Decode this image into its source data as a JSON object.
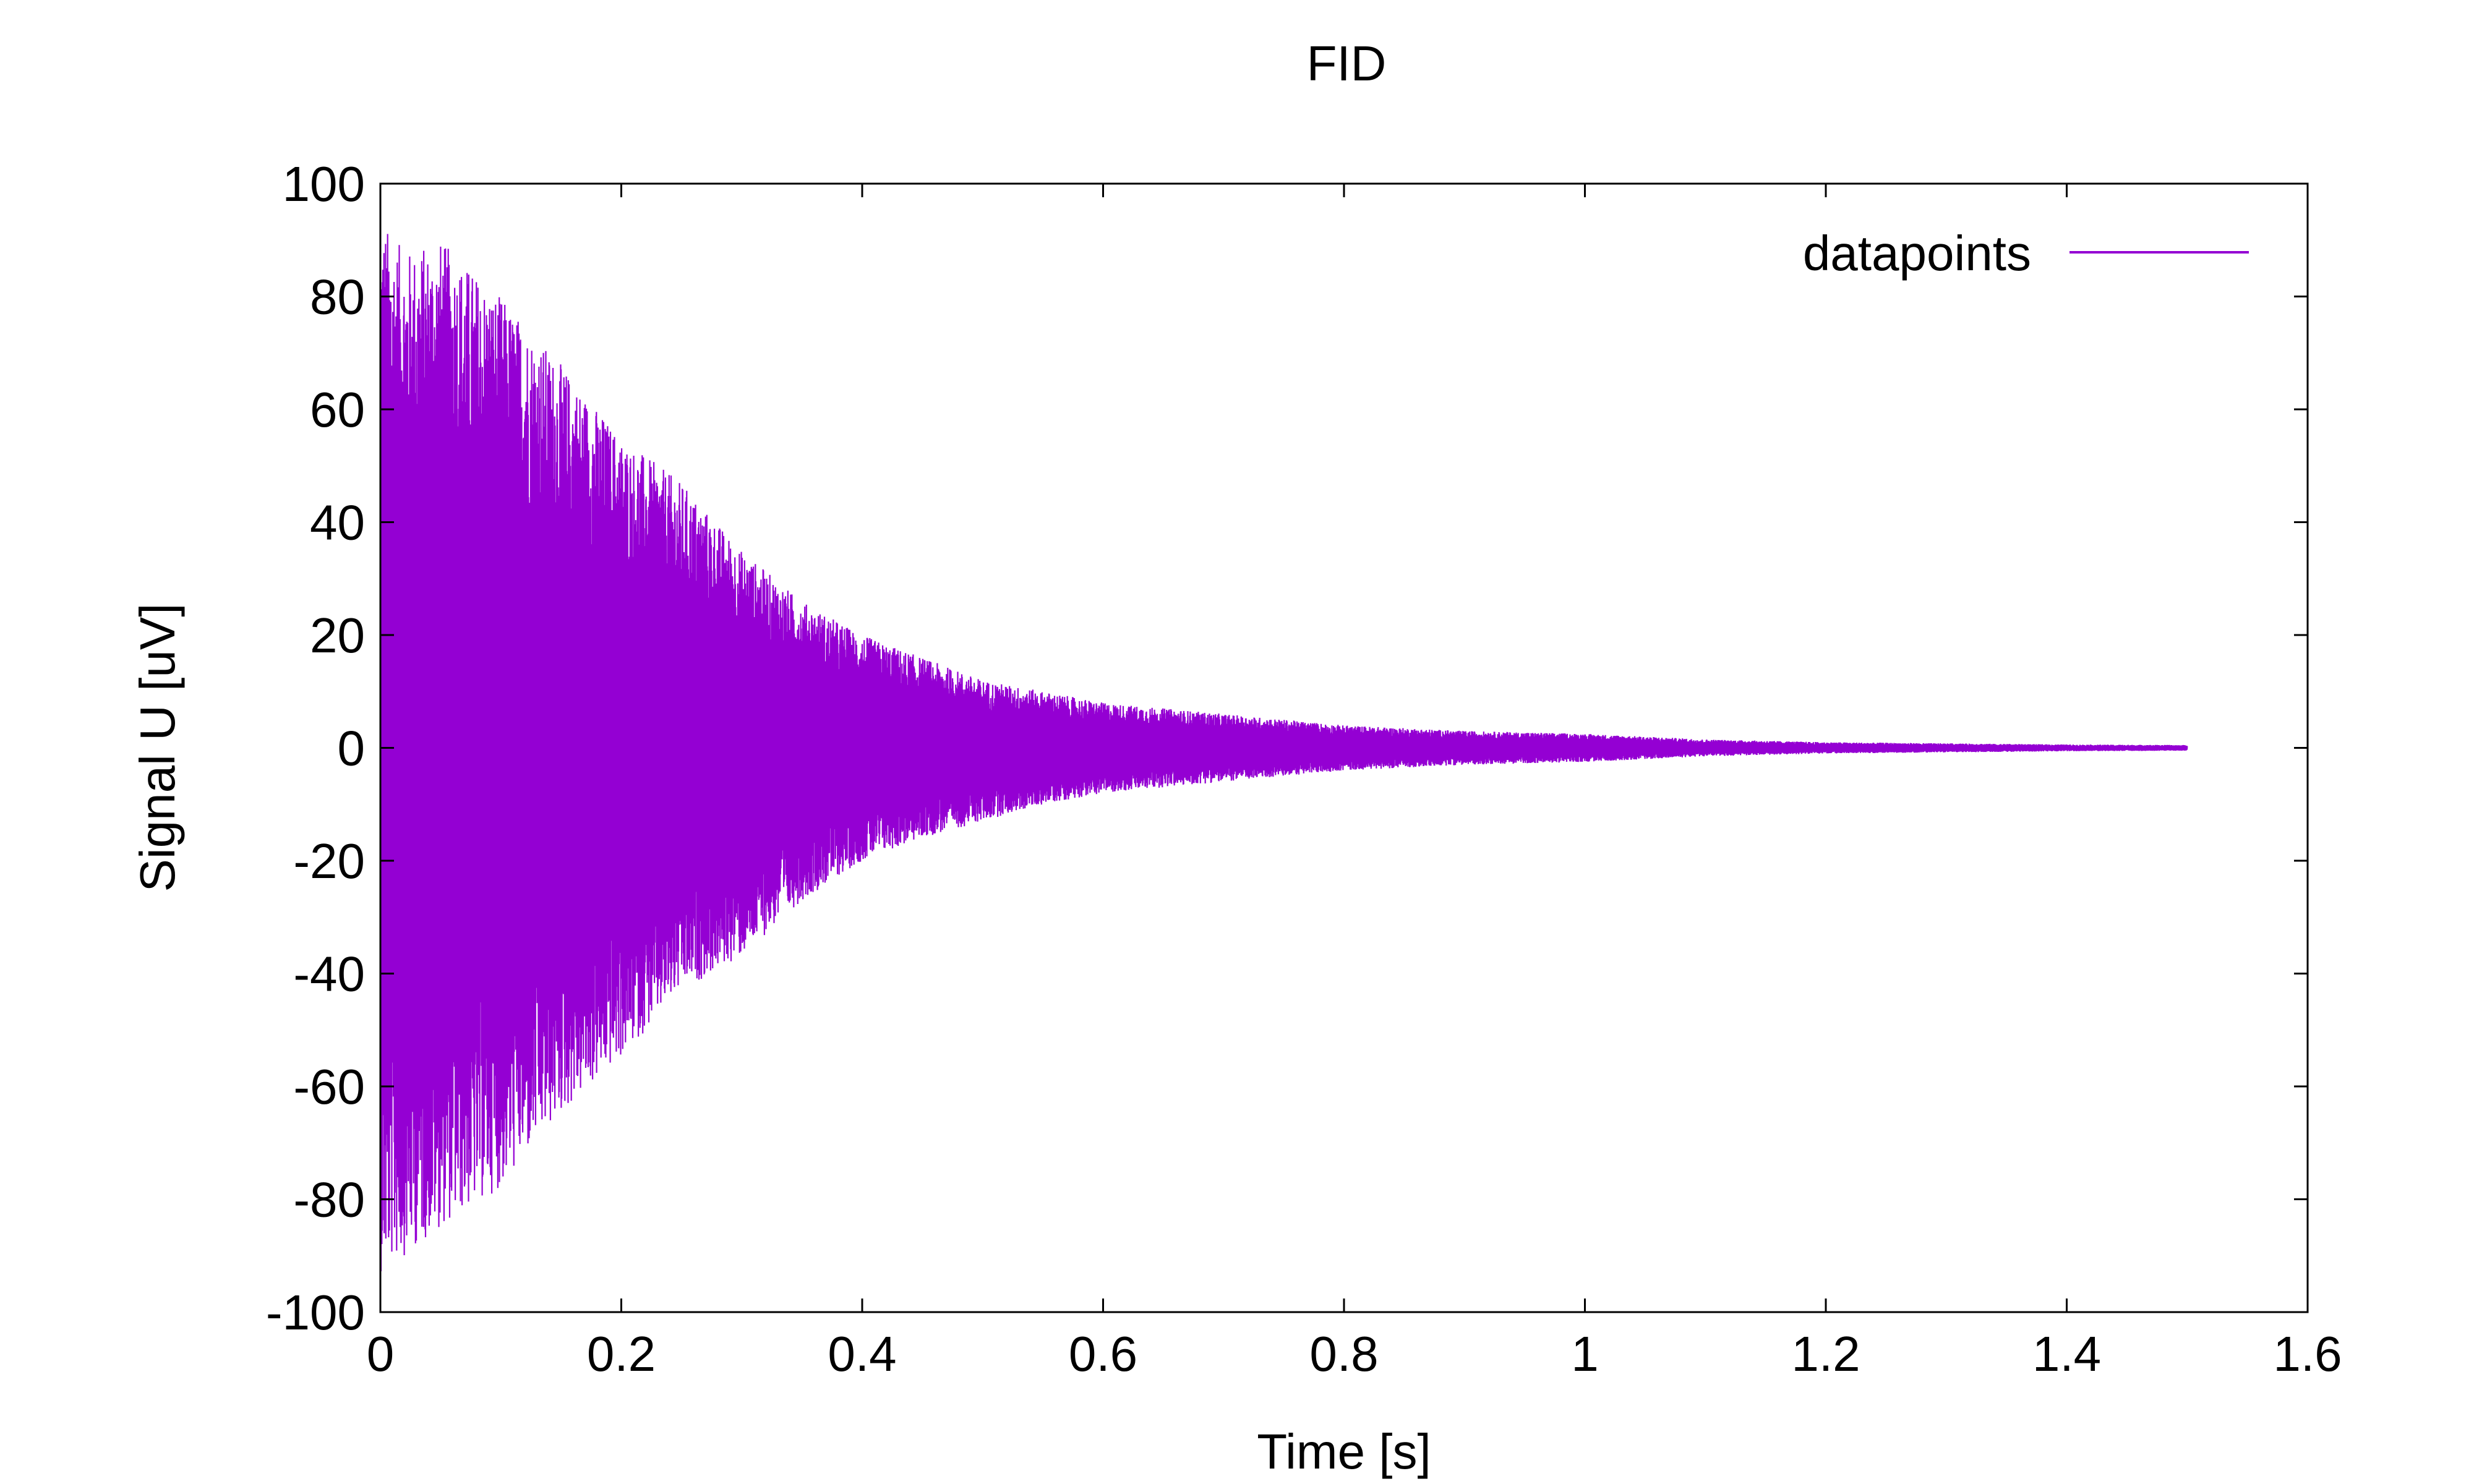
{
  "chart_data": {
    "type": "line",
    "title": "FID",
    "xlabel": "Time [s]",
    "ylabel": "Signal U [uV]",
    "xlim": [
      0,
      1.6
    ],
    "ylim": [
      -100,
      100
    ],
    "x_ticks": [
      "0",
      "0.2",
      "0.4",
      "0.6",
      "0.8",
      "1",
      "1.2",
      "1.4",
      "1.6"
    ],
    "y_ticks": [
      "-100",
      "-80",
      "-60",
      "-40",
      "-20",
      "0",
      "20",
      "40",
      "60",
      "80",
      "100"
    ],
    "grid": false,
    "legend_position": "top-right",
    "series": [
      {
        "name": "datapoints",
        "color": "#9400d3",
        "x_range": [
          0,
          1.5
        ],
        "envelope": {
          "x": [
            0,
            0.02,
            0.05,
            0.1,
            0.15,
            0.2,
            0.25,
            0.3,
            0.35,
            0.4,
            0.45,
            0.5,
            0.55,
            0.6,
            0.65,
            0.7,
            0.75,
            0.8,
            0.9,
            1.0,
            1.1,
            1.2,
            1.3,
            1.4,
            1.5
          ],
          "upper": [
            94,
            88,
            90,
            80,
            68,
            55,
            47,
            35,
            26,
            20,
            16,
            12,
            10,
            8,
            7,
            6,
            5,
            4,
            3,
            2.5,
            1.5,
            1,
            0.8,
            0.6,
            0.5
          ],
          "lower": [
            -93,
            -90,
            -85,
            -78,
            -65,
            -55,
            -43,
            -37,
            -27,
            -20,
            -16,
            -13,
            -10,
            -8,
            -7,
            -6,
            -5,
            -4,
            -3,
            -2.5,
            -1.5,
            -1,
            -0.8,
            -0.6,
            -0.5
          ]
        }
      }
    ]
  }
}
